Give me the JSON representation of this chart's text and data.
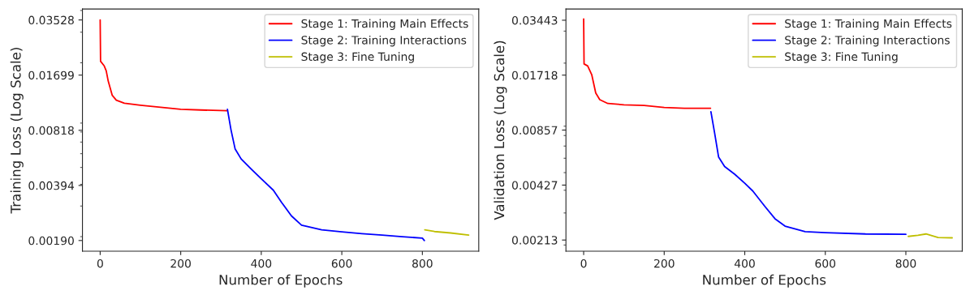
{
  "chart_data": [
    {
      "type": "line",
      "xlabel": "Number of Epochs",
      "ylabel": "Training Loss (Log Scale)",
      "log": "y",
      "legend": "top right",
      "grid": false,
      "xlim": [
        -44,
        940
      ],
      "xticks": [
        0,
        200,
        400,
        600,
        800
      ],
      "ylim": [
        0.00165,
        0.0408
      ],
      "yticks": [
        {
          "value": 0.0019,
          "label": "0.00190"
        },
        0.00394,
        0.00818,
        0.01699,
        0.03528
      ],
      "series": [
        {
          "name": "Stage 1: Training Main Effects",
          "color": "#ff0000",
          "x": [
            0,
            1,
            10,
            15,
            20,
            30,
            40,
            60,
            100,
            150,
            200,
            250,
            315
          ],
          "values": [
            0.0353,
            0.0204,
            0.0192,
            0.018,
            0.0157,
            0.013,
            0.0122,
            0.0117,
            0.0114,
            0.0111,
            0.0108,
            0.0107,
            0.0106
          ]
        },
        {
          "name": "Stage 2: Training Interactions",
          "color": "#0000ff",
          "x": [
            316,
            325,
            335,
            350,
            375,
            400,
            430,
            450,
            475,
            500,
            550,
            600,
            650,
            700,
            750,
            800,
            805
          ],
          "values": [
            0.0108,
            0.0082,
            0.0064,
            0.0056,
            0.0049,
            0.0043,
            0.0037,
            0.00316,
            0.00263,
            0.00233,
            0.00219,
            0.00213,
            0.00208,
            0.00204,
            0.002,
            0.00196,
            0.0019
          ]
        },
        {
          "name": "Stage 3: Fine Tuning",
          "color": "#bfbf00",
          "x": [
            806,
            830,
            870,
            915
          ],
          "values": [
            0.00219,
            0.00214,
            0.0021,
            0.00204
          ]
        }
      ]
    },
    {
      "type": "line",
      "xlabel": "Number of Epochs",
      "ylabel": "Validation Loss (Log Scale)",
      "log": "y",
      "legend": "top right",
      "grid": false,
      "xlim": [
        -44,
        940
      ],
      "xticks": [
        0,
        200,
        400,
        600,
        800
      ],
      "ylim": [
        0.00185,
        0.0397
      ],
      "yticks": [
        0.00213,
        0.00427,
        0.00857,
        0.01718,
        0.03443
      ],
      "series": [
        {
          "name": "Stage 1: Training Main Effects",
          "color": "#ff0000",
          "x": [
            0,
            1,
            10,
            20,
            30,
            40,
            60,
            100,
            150,
            200,
            250,
            315
          ],
          "values": [
            0.035,
            0.0198,
            0.0193,
            0.0173,
            0.0137,
            0.0126,
            0.012,
            0.0118,
            0.0117,
            0.0114,
            0.0113,
            0.0113
          ]
        },
        {
          "name": "Stage 2: Training Interactions",
          "color": "#0000ff",
          "x": [
            316,
            325,
            335,
            350,
            375,
            400,
            420,
            450,
            475,
            500,
            550,
            600,
            700,
            800
          ],
          "values": [
            0.0108,
            0.0083,
            0.0061,
            0.0054,
            0.0049,
            0.00437,
            0.00396,
            0.00326,
            0.00279,
            0.00254,
            0.00237,
            0.00234,
            0.0023,
            0.00229
          ]
        },
        {
          "name": "Stage 3: Fine Tuning",
          "color": "#bfbf00",
          "x": [
            806,
            830,
            850,
            880,
            915
          ],
          "values": [
            0.00223,
            0.00226,
            0.0023,
            0.0022,
            0.00219
          ]
        }
      ]
    }
  ]
}
